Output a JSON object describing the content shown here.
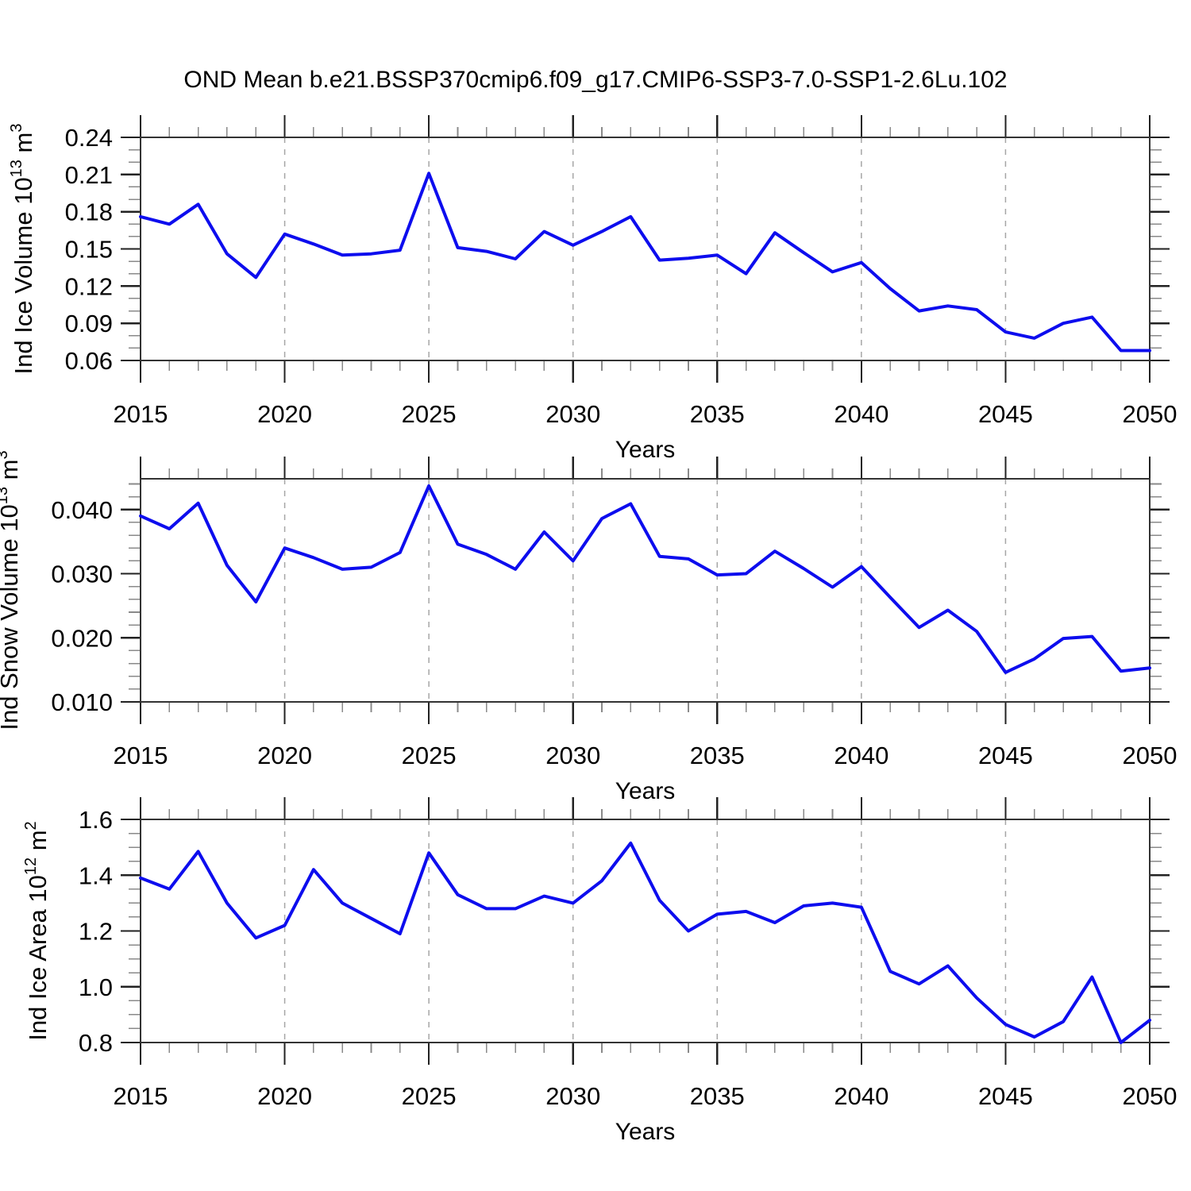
{
  "title": "OND Mean b.e21.BSSP370cmip6.f09_g17.CMIP6-SSP3-7.0-SSP1-2.6Lu.102",
  "colors": {
    "line": "#0d0dee",
    "frame": "#333333",
    "major_tick": "#222222",
    "minor_tick": "#8a8a8a",
    "grid": "#a6a6a6",
    "text": "#000000"
  },
  "x_axis": {
    "label": "Years",
    "years": [
      2015,
      2016,
      2017,
      2018,
      2019,
      2020,
      2021,
      2022,
      2023,
      2024,
      2025,
      2026,
      2027,
      2028,
      2029,
      2030,
      2031,
      2032,
      2033,
      2034,
      2035,
      2036,
      2037,
      2038,
      2039,
      2040,
      2041,
      2042,
      2043,
      2044,
      2045,
      2046,
      2047,
      2048,
      2049,
      2050
    ],
    "tick_labels": [
      "2015",
      "2020",
      "2025",
      "2030",
      "2035",
      "2040",
      "2045",
      "2050"
    ],
    "major_step": 5,
    "minor_step": 1,
    "grid_years": [
      2020,
      2025,
      2030,
      2035,
      2040,
      2045
    ]
  },
  "chart_data": [
    {
      "type": "line",
      "name": "ice-volume-chart",
      "ylabel": "Ind Ice Volume 10^13 m^3",
      "ylabel_parts": [
        {
          "t": "Ind Ice Volume 10"
        },
        {
          "t": "13",
          "sup": true
        },
        {
          "t": " m"
        },
        {
          "t": "3",
          "sup": true
        }
      ],
      "xlabel": "Years",
      "ylim": [
        0.06,
        0.24
      ],
      "ytick_step": 0.03,
      "yminor_step": 0.01,
      "ytick_decimals": 2,
      "ytick_labels": [
        "0.06",
        "0.09",
        "0.12",
        "0.15",
        "0.18",
        "0.21",
        "0.24"
      ],
      "grid": "vertical-dashed",
      "legend": "none",
      "values": [
        0.176,
        0.17,
        0.186,
        0.146,
        0.127,
        0.162,
        0.154,
        0.145,
        0.146,
        0.149,
        0.211,
        0.151,
        0.148,
        0.142,
        0.164,
        0.153,
        0.164,
        0.176,
        0.141,
        0.1425,
        0.145,
        0.13,
        0.163,
        0.147,
        0.1315,
        0.139,
        0.118,
        0.1,
        0.104,
        0.101,
        0.083,
        0.078,
        0.09,
        0.095,
        0.068,
        0.068
      ]
    },
    {
      "type": "line",
      "name": "snow-volume-chart",
      "ylabel": "Ind Snow Volume 10^13 m^3",
      "ylabel_parts": [
        {
          "t": "Ind Snow Volume 10"
        },
        {
          "t": "13",
          "sup": true
        },
        {
          "t": " m"
        },
        {
          "t": "3",
          "sup": true
        }
      ],
      "xlabel": "Years",
      "ylim": [
        0.01,
        0.0448
      ],
      "ytick_step": 0.01,
      "yminor_step": 0.002,
      "ytick_decimals": 3,
      "ytick_labels": [
        "0.010",
        "0.020",
        "0.030",
        "0.040"
      ],
      "grid": "vertical-dashed",
      "legend": "none",
      "values": [
        0.039,
        0.037,
        0.041,
        0.0313,
        0.0256,
        0.034,
        0.0325,
        0.0307,
        0.031,
        0.0333,
        0.0437,
        0.0346,
        0.033,
        0.0307,
        0.0365,
        0.032,
        0.0386,
        0.0409,
        0.0327,
        0.0323,
        0.0298,
        0.03,
        0.0335,
        0.0308,
        0.0279,
        0.0311,
        0.0263,
        0.0216,
        0.0243,
        0.021,
        0.0146,
        0.0167,
        0.0199,
        0.0202,
        0.0148,
        0.0153
      ]
    },
    {
      "type": "line",
      "name": "ice-area-chart",
      "ylabel": "Ind Ice Area 10^12 m^2",
      "ylabel_parts": [
        {
          "t": "Ind Ice Area 10"
        },
        {
          "t": "12",
          "sup": true
        },
        {
          "t": " m"
        },
        {
          "t": "2",
          "sup": true
        }
      ],
      "xlabel": "Years",
      "ylim": [
        0.8,
        1.6
      ],
      "ytick_step": 0.2,
      "yminor_step": 0.05,
      "ytick_decimals": 1,
      "ytick_labels": [
        "0.8",
        "1.0",
        "1.2",
        "1.4",
        "1.6"
      ],
      "grid": "vertical-dashed",
      "legend": "none",
      "values": [
        1.39,
        1.35,
        1.485,
        1.3,
        1.175,
        1.22,
        1.42,
        1.3,
        1.245,
        1.19,
        1.48,
        1.33,
        1.28,
        1.28,
        1.325,
        1.3,
        1.38,
        1.515,
        1.31,
        1.2,
        1.26,
        1.27,
        1.23,
        1.29,
        1.3,
        1.285,
        1.055,
        1.01,
        1.075,
        0.96,
        0.865,
        0.82,
        0.875,
        1.035,
        0.8,
        0.88
      ]
    }
  ]
}
